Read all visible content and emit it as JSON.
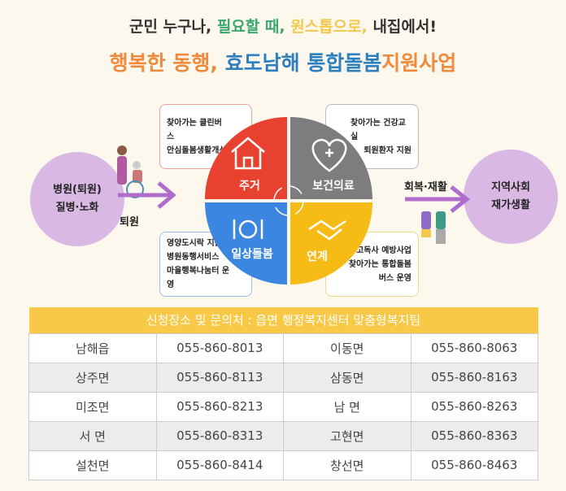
{
  "header": {
    "subtitle_parts": [
      {
        "text": "군민 누구나, ",
        "color": "#333333"
      },
      {
        "text": "필요할 때, ",
        "color": "#3aa76d"
      },
      {
        "text": "원스톱으로, ",
        "color": "#f2c94c"
      },
      {
        "text": "내집에서!",
        "color": "#333333"
      }
    ],
    "title_parts": [
      {
        "text": "행복한 동행, ",
        "color": "#f08a3c"
      },
      {
        "text": "효도남해 통합돌봄",
        "color": "#2e7fc0"
      },
      {
        "text": "지원사업",
        "color": "#f08a3c"
      }
    ]
  },
  "left": {
    "circle_line1": "병원(퇴원)",
    "circle_line2": "질병·노화",
    "arrow_label": "퇴원"
  },
  "right": {
    "circle_line1": "지역사회",
    "circle_line2": "재가생활",
    "arrow_label": "회복·재활"
  },
  "quadrants": [
    {
      "label": "주거",
      "color": "#e8412f",
      "icon": "house-icon",
      "items": [
        "찾아가는 클린버스",
        "안심돌봄생활개선"
      ]
    },
    {
      "label": "보건의료",
      "color": "#7d7d80",
      "icon": "heart-plus-icon",
      "items": [
        "찾아가는 건강교실",
        "퇴원환자 지원"
      ]
    },
    {
      "label": "일상돌봄",
      "color": "#3b86e0",
      "icon": "fork-plate-knife-icon",
      "items": [
        "영양도시락 지원",
        "병원동행서비스",
        "마을행복나눔터 운영"
      ]
    },
    {
      "label": "연계",
      "color": "#f6bb14",
      "icon": "handshake-icon",
      "items": [
        "고독사 예방사업",
        "찾아가는 통합돌봄",
        "버스 운영"
      ]
    }
  ],
  "table": {
    "header": "신청장소 및 문의처 : 읍면 행정복지센터 맞춤형복지팀",
    "rows": [
      [
        "남해읍",
        "055-860-8013",
        "이동면",
        "055-860-8063"
      ],
      [
        "상주면",
        "055-860-8113",
        "삼동면",
        "055-860-8163"
      ],
      [
        "미조면",
        "055-860-8213",
        "남 면",
        "055-860-8263"
      ],
      [
        "서 면",
        "055-860-8313",
        "고현면",
        "055-860-8363"
      ],
      [
        "설천면",
        "055-860-8414",
        "창선면",
        "055-860-8463"
      ]
    ]
  }
}
